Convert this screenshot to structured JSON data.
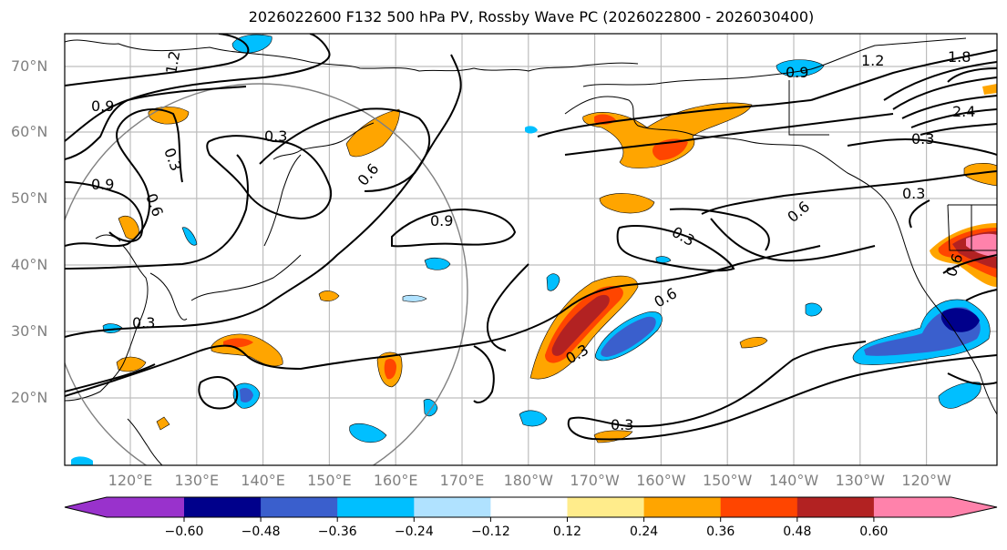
{
  "title": "2026022600 F132 500 hPa PV, Rossby Wave PC (2026022800 - 2026030400)",
  "map": {
    "lat_labels": [
      "70°N",
      "60°N",
      "50°N",
      "40°N",
      "30°N",
      "20°N"
    ],
    "lon_labels": [
      "120°E",
      "130°E",
      "140°E",
      "150°E",
      "160°E",
      "170°E",
      "180°W",
      "170°W",
      "160°W",
      "150°W",
      "140°W",
      "130°W",
      "120°W"
    ],
    "contour_labels": [
      {
        "text": "1.2"
      },
      {
        "text": "0.9"
      },
      {
        "text": "0.9"
      },
      {
        "text": "0.6"
      },
      {
        "text": "0.3"
      },
      {
        "text": "0.3"
      },
      {
        "text": "0.6"
      },
      {
        "text": "0.9"
      },
      {
        "text": "0.3"
      },
      {
        "text": "0.6"
      },
      {
        "text": "0.3"
      },
      {
        "text": "0.6"
      },
      {
        "text": "0.3"
      },
      {
        "text": "0.3"
      },
      {
        "text": "0.3"
      },
      {
        "text": "0.9"
      },
      {
        "text": "1.2"
      },
      {
        "text": "1.8"
      },
      {
        "text": "2.4"
      },
      {
        "text": "0.6"
      },
      {
        "text": "0.3"
      }
    ]
  },
  "colorbar": {
    "colors": [
      "#9932cc",
      "#00008b",
      "#3a5fcd",
      "#00bfff",
      "#b0e2ff",
      "#ffffff",
      "#ffec8b",
      "#ffa500",
      "#ff4500",
      "#b22222",
      "#ff82ab"
    ],
    "ticks": [
      "−0.60",
      "−0.48",
      "−0.36",
      "−0.24",
      "−0.12",
      "0.12",
      "0.24",
      "0.36",
      "0.48",
      "0.60"
    ]
  }
}
